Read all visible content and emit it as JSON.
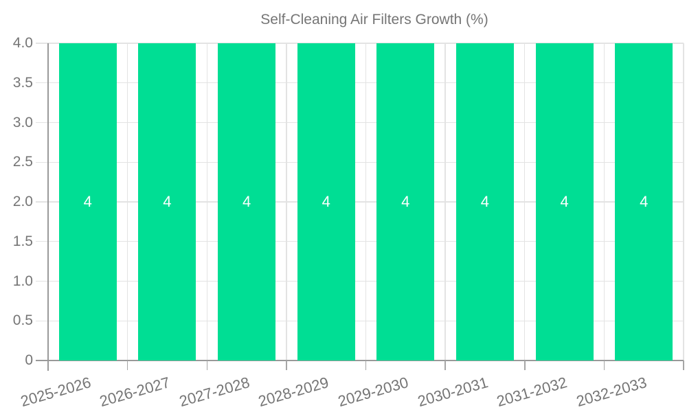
{
  "legend": {
    "label": "Self-Cleaning Air Filters Growth (%)"
  },
  "chart_data": {
    "type": "bar",
    "title": "Self-Cleaning Air Filters Growth (%)",
    "categories": [
      "2025-2026",
      "2026-2027",
      "2027-2028",
      "2028-2029",
      "2029-2030",
      "2030-2031",
      "2031-2032",
      "2032-2033"
    ],
    "values": [
      4,
      4,
      4,
      4,
      4,
      4,
      4,
      4
    ],
    "xlabel": "",
    "ylabel": "",
    "ylim": [
      0,
      4
    ],
    "ytick_labels": [
      "0",
      "0.5",
      "1.0",
      "1.5",
      "2.0",
      "2.5",
      "3.0",
      "3.5",
      "4.0"
    ],
    "grid": true,
    "legend_position": "top-center",
    "colors": {
      "bar": "#00DE94",
      "bar_label": "#ffffff",
      "axis": "#999999",
      "tick": "#a6a6a6",
      "gridline": "#e3e3e3",
      "text": "#757575"
    }
  }
}
